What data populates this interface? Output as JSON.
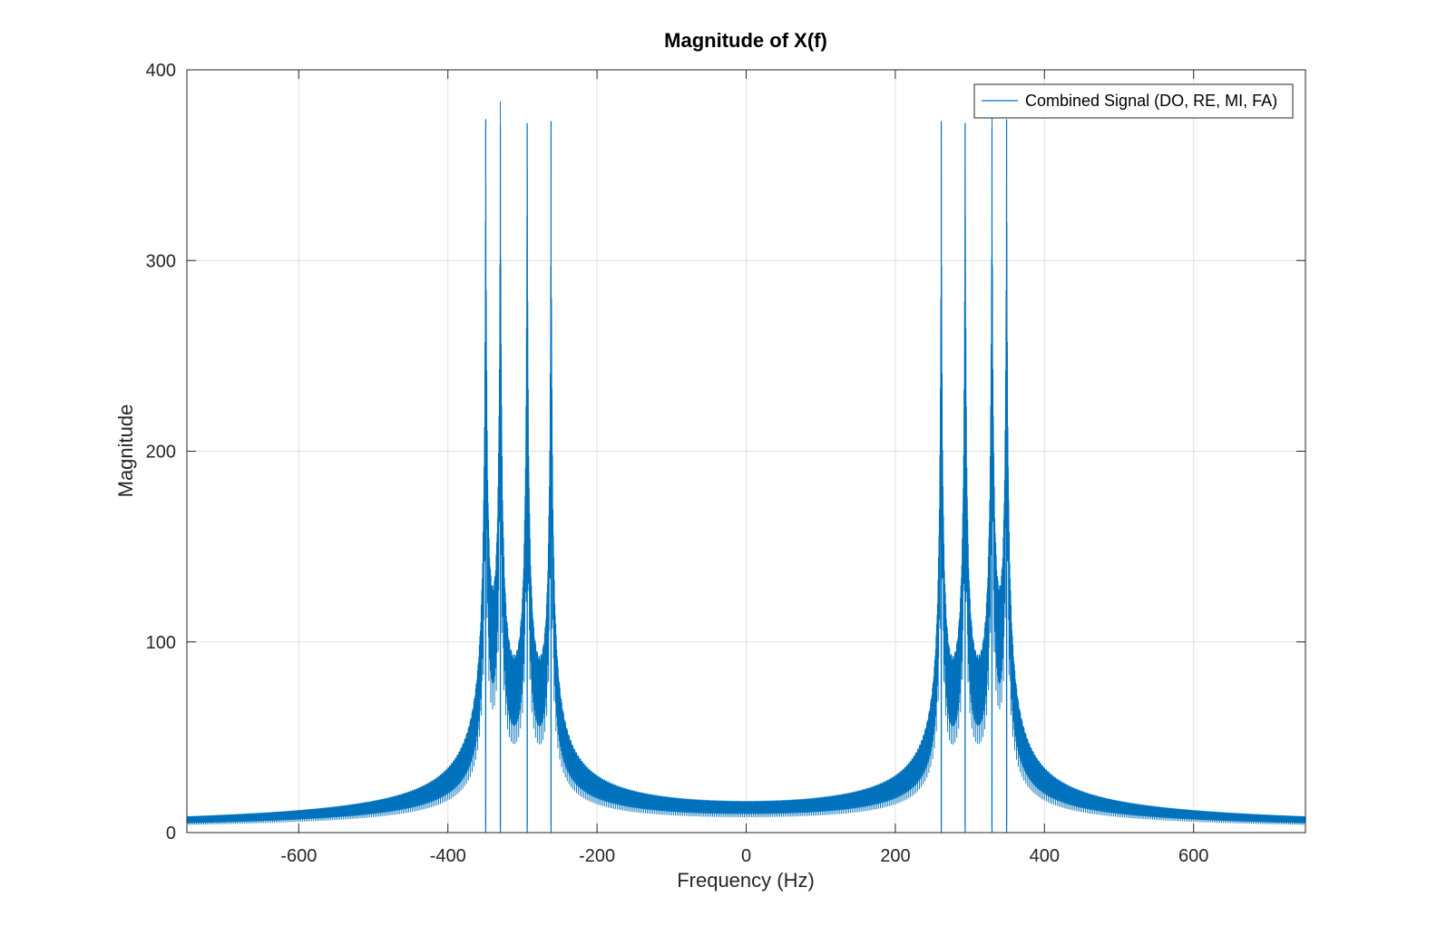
{
  "chart_data": {
    "type": "line",
    "title": "Magnitude of X(f)",
    "xlabel": "Frequency (Hz)",
    "ylabel": "Magnitude",
    "xlim": [
      -750,
      750
    ],
    "ylim": [
      0,
      400
    ],
    "xticks": [
      -600,
      -400,
      -200,
      0,
      200,
      400,
      600
    ],
    "yticks": [
      0,
      100,
      200,
      300,
      400
    ],
    "xtick_labels": [
      "-600",
      "-400",
      "-200",
      "0",
      "200",
      "400",
      "600"
    ],
    "ytick_labels": [
      "0",
      "100",
      "200",
      "300",
      "400"
    ],
    "grid": true,
    "legend": {
      "position": "top-right",
      "entries": [
        "Combined Signal (DO, RE, MI, FA)"
      ]
    },
    "series": [
      {
        "name": "Combined Signal (DO, RE, MI, FA)",
        "color": "#0072BD",
        "peaks": [
          {
            "freq": -349.23,
            "magnitude": 374
          },
          {
            "freq": -329.63,
            "magnitude": 370
          },
          {
            "freq": -293.66,
            "magnitude": 372
          },
          {
            "freq": -261.63,
            "magnitude": 373
          },
          {
            "freq": 261.63,
            "magnitude": 373
          },
          {
            "freq": 293.66,
            "magnitude": 372
          },
          {
            "freq": 329.63,
            "magnitude": 370
          },
          {
            "freq": 349.23,
            "magnitude": 374
          }
        ]
      }
    ]
  }
}
